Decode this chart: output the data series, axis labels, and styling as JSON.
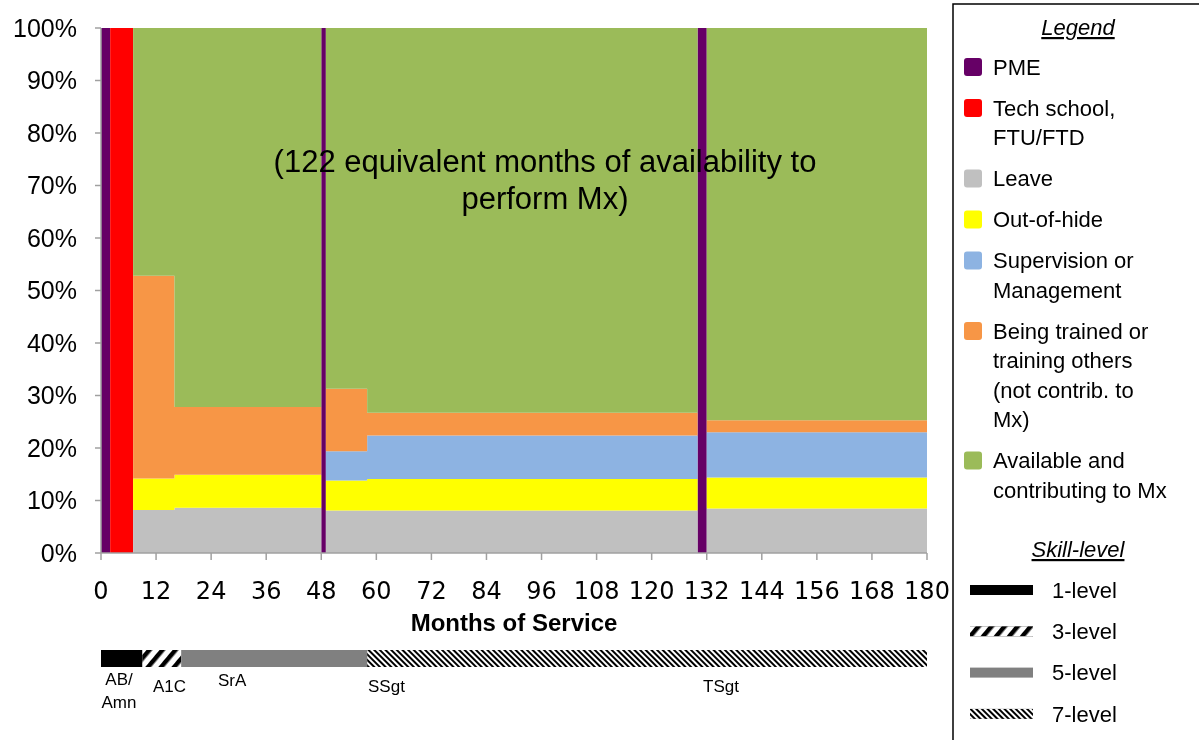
{
  "chart_data": [
    {
      "type": "area",
      "stacked": true,
      "x": [
        0,
        2,
        2,
        7,
        7,
        16,
        16,
        48,
        48,
        49,
        49,
        58,
        58,
        130,
        130,
        132,
        132,
        180
      ],
      "series": [
        {
          "name": "PME",
          "color": "#660066",
          "values": [
            100,
            100,
            null,
            null,
            null,
            null,
            null,
            null,
            100,
            100,
            null,
            null,
            null,
            null,
            100,
            100,
            null,
            null
          ]
        },
        {
          "name": "Tech school, FTU/FTD",
          "color": "#ff0000",
          "values": [
            null,
            null,
            100,
            100,
            null,
            null,
            null,
            null,
            null,
            null,
            null,
            null,
            null,
            null,
            null,
            null,
            null,
            null
          ]
        },
        {
          "name": "Leave",
          "color": "#c0c0c0",
          "values": [
            null,
            null,
            null,
            null,
            8.2,
            8.2,
            8.6,
            8.6,
            null,
            null,
            8.1,
            8.1,
            8.1,
            8.1,
            null,
            null,
            8.5,
            8.5
          ]
        },
        {
          "name": "Out-of-hide",
          "color": "#ffff00",
          "values": [
            null,
            null,
            null,
            null,
            6,
            6,
            6.3,
            6.3,
            null,
            null,
            5.7,
            5.7,
            6,
            6,
            null,
            null,
            5.9,
            5.9
          ]
        },
        {
          "name": "Supervision or Management",
          "color": "#8db3e2",
          "values": [
            null,
            null,
            null,
            null,
            null,
            null,
            null,
            null,
            null,
            null,
            5.6,
            5.6,
            8.3,
            8.3,
            null,
            null,
            8.6,
            8.6
          ]
        },
        {
          "name": "Being trained or training others (not contrib. to Mx)",
          "color": "#f79646",
          "values": [
            null,
            null,
            null,
            null,
            38.6,
            38.6,
            12.9,
            12.9,
            null,
            null,
            11.9,
            11.9,
            4.3,
            4.3,
            null,
            null,
            2.3,
            2.3
          ]
        },
        {
          "name": "Available and contributing to Mx",
          "color": "#9bbb59",
          "values": [
            null,
            null,
            null,
            null,
            47.2,
            47.2,
            72.2,
            72.2,
            null,
            null,
            68.7,
            68.7,
            73.3,
            73.3,
            null,
            null,
            74.7,
            74.7
          ]
        }
      ],
      "xlim": [
        0,
        180
      ],
      "xticks": [
        0,
        12,
        24,
        36,
        48,
        60,
        72,
        84,
        96,
        108,
        120,
        132,
        144,
        156,
        168,
        180
      ],
      "ylim": [
        0,
        100
      ],
      "yticks": [
        {
          "value": 0,
          "label": "0%"
        },
        {
          "value": 10,
          "label": "10%"
        },
        {
          "value": 20,
          "label": "20%"
        },
        {
          "value": 30,
          "label": "30%"
        },
        {
          "value": 40,
          "label": "40%"
        },
        {
          "value": 50,
          "label": "50%"
        },
        {
          "value": 60,
          "label": "60%"
        },
        {
          "value": 70,
          "label": "70%"
        },
        {
          "value": 80,
          "label": "80%"
        },
        {
          "value": 90,
          "label": "90%"
        },
        {
          "value": 100,
          "label": "100%"
        }
      ],
      "xlabel": "Months of Service",
      "legend": "right",
      "legend_title": "Legend",
      "annotations": [
        "(122 equivalent months of availability to perform Mx)"
      ]
    },
    {
      "type": "bar",
      "orientation": "horizontal",
      "stacked": true,
      "categories": [
        null
      ],
      "series": [
        {
          "name": "1-level",
          "color": "#000000",
          "values": [
            9
          ]
        },
        {
          "name": "3-level",
          "color": "#000000",
          "values": [
            8.5
          ],
          "line_style": "dashed"
        },
        {
          "name": "5-level",
          "color": "#808080",
          "values": [
            40.5
          ]
        },
        {
          "name": "7-level",
          "color": "#000000",
          "values": [
            122
          ],
          "line_style": "dotted"
        }
      ],
      "xlim": [
        0,
        180
      ],
      "tick_labels": false,
      "legend": "right",
      "legend_title": "Skill-level",
      "annotations": [
        "AB/Amn",
        "A1C",
        "SrA",
        "SSgt",
        "TSgt"
      ]
    }
  ]
}
